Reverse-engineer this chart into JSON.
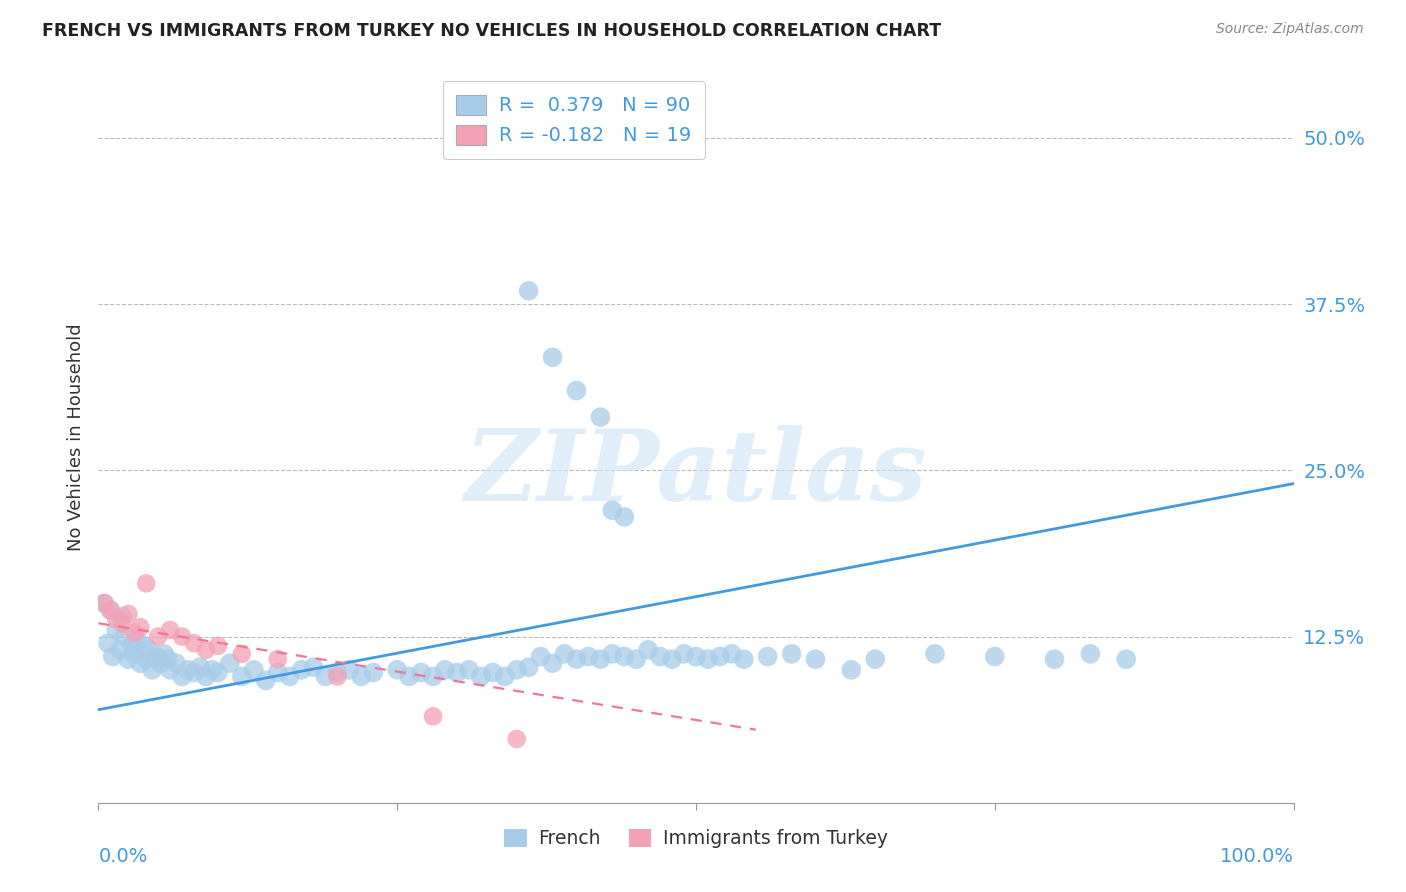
{
  "title": "FRENCH VS IMMIGRANTS FROM TURKEY NO VEHICLES IN HOUSEHOLD CORRELATION CHART",
  "source": "Source: ZipAtlas.com",
  "ylabel": "No Vehicles in Household",
  "y_ticks": [
    0.0,
    0.125,
    0.25,
    0.375,
    0.5
  ],
  "y_tick_labels": [
    "",
    "12.5%",
    "25.0%",
    "37.5%",
    "50.0%"
  ],
  "x_lim": [
    0.0,
    1.0
  ],
  "y_lim": [
    0.0,
    0.55
  ],
  "color_french": "#a8cce8",
  "color_turkey": "#f4a0b5",
  "color_line_french": "#4499dd",
  "color_line_turkey": "#ee7799",
  "watermark_text": "ZIPatlas",
  "french_line_x": [
    0.0,
    1.0
  ],
  "french_line_y": [
    0.07,
    0.24
  ],
  "turkey_line_x": [
    0.0,
    0.55
  ],
  "turkey_line_y": [
    0.135,
    0.055
  ],
  "french_scatter_x": [
    0.005,
    0.008,
    0.01,
    0.012,
    0.015,
    0.018,
    0.02,
    0.022,
    0.025,
    0.028,
    0.03,
    0.032,
    0.035,
    0.038,
    0.04,
    0.042,
    0.045,
    0.048,
    0.05,
    0.052,
    0.055,
    0.058,
    0.06,
    0.065,
    0.07,
    0.075,
    0.08,
    0.085,
    0.09,
    0.095,
    0.1,
    0.11,
    0.12,
    0.13,
    0.14,
    0.15,
    0.16,
    0.17,
    0.18,
    0.19,
    0.2,
    0.21,
    0.22,
    0.23,
    0.25,
    0.26,
    0.27,
    0.28,
    0.29,
    0.3,
    0.31,
    0.32,
    0.33,
    0.34,
    0.35,
    0.36,
    0.37,
    0.38,
    0.39,
    0.4,
    0.41,
    0.42,
    0.43,
    0.44,
    0.45,
    0.46,
    0.47,
    0.48,
    0.49,
    0.5,
    0.51,
    0.52,
    0.53,
    0.54,
    0.56,
    0.58,
    0.6,
    0.63,
    0.65,
    0.7,
    0.75,
    0.8,
    0.83,
    0.86,
    0.36,
    0.38,
    0.4,
    0.42,
    0.43,
    0.44
  ],
  "french_scatter_y": [
    0.15,
    0.12,
    0.145,
    0.11,
    0.13,
    0.115,
    0.14,
    0.125,
    0.108,
    0.118,
    0.112,
    0.122,
    0.105,
    0.118,
    0.108,
    0.115,
    0.1,
    0.11,
    0.108,
    0.105,
    0.112,
    0.108,
    0.1,
    0.105,
    0.095,
    0.1,
    0.098,
    0.102,
    0.095,
    0.1,
    0.098,
    0.105,
    0.095,
    0.1,
    0.092,
    0.098,
    0.095,
    0.1,
    0.102,
    0.095,
    0.098,
    0.1,
    0.095,
    0.098,
    0.1,
    0.095,
    0.098,
    0.095,
    0.1,
    0.098,
    0.1,
    0.095,
    0.098,
    0.095,
    0.1,
    0.102,
    0.11,
    0.105,
    0.112,
    0.108,
    0.11,
    0.108,
    0.112,
    0.11,
    0.108,
    0.115,
    0.11,
    0.108,
    0.112,
    0.11,
    0.108,
    0.11,
    0.112,
    0.108,
    0.11,
    0.112,
    0.108,
    0.1,
    0.108,
    0.112,
    0.11,
    0.108,
    0.112,
    0.108,
    0.385,
    0.335,
    0.31,
    0.29,
    0.22,
    0.215
  ],
  "turkey_scatter_x": [
    0.005,
    0.01,
    0.015,
    0.02,
    0.025,
    0.03,
    0.035,
    0.04,
    0.05,
    0.06,
    0.07,
    0.08,
    0.09,
    0.1,
    0.12,
    0.15,
    0.2,
    0.28,
    0.35
  ],
  "turkey_scatter_y": [
    0.15,
    0.145,
    0.138,
    0.135,
    0.142,
    0.128,
    0.132,
    0.165,
    0.125,
    0.13,
    0.125,
    0.12,
    0.115,
    0.118,
    0.112,
    0.108,
    0.095,
    0.065,
    0.048
  ]
}
